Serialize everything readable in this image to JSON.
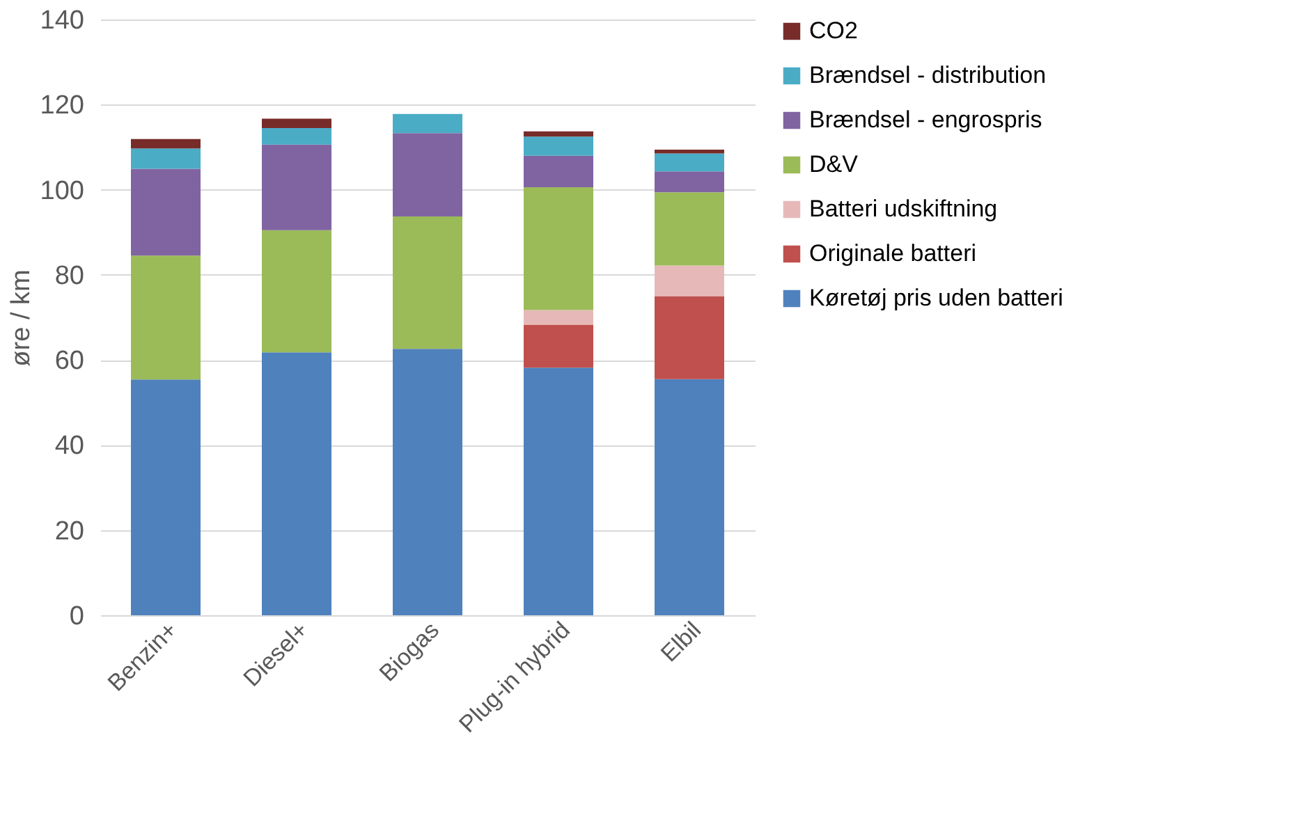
{
  "chart_data": {
    "type": "bar",
    "stacked": true,
    "ylabel": "øre / km",
    "categories": [
      "Benzin+",
      "Diesel+",
      "Biogas",
      "Plug-in hybrid",
      "Elbil"
    ],
    "series": [
      {
        "name": "Køretøj pris uden batteri",
        "color": "#4f81bd",
        "values": [
          55.4,
          61.8,
          62.6,
          58.2,
          55.5
        ]
      },
      {
        "name": "Originale batteri",
        "color": "#c0504d",
        "values": [
          null,
          null,
          null,
          10.1,
          19.5
        ]
      },
      {
        "name": "Batteri udskiftning",
        "color": "#e6b9b8",
        "values": [
          null,
          null,
          null,
          3.4,
          7.2
        ]
      },
      {
        "name": "D&V",
        "color": "#9bbb59",
        "values": [
          29.1,
          28.7,
          31.1,
          28.9,
          17.2
        ]
      },
      {
        "name": "Brændsel - engrospris",
        "color": "#8064a2",
        "values": [
          20.4,
          20.1,
          19.6,
          7.4,
          4.9
        ]
      },
      {
        "name": "Brændsel - distribution",
        "color": "#4bacc6",
        "values": [
          4.8,
          3.9,
          4.5,
          4.5,
          4.2
        ]
      },
      {
        "name": "CO2",
        "color": "#772c2a",
        "values": [
          2.2,
          2.2,
          null,
          1.2,
          0.9
        ]
      }
    ],
    "ylim": [
      0,
      140
    ],
    "yticks": [
      0,
      20,
      40,
      60,
      80,
      100,
      120,
      140
    ],
    "grid": "y",
    "legend": "right"
  }
}
